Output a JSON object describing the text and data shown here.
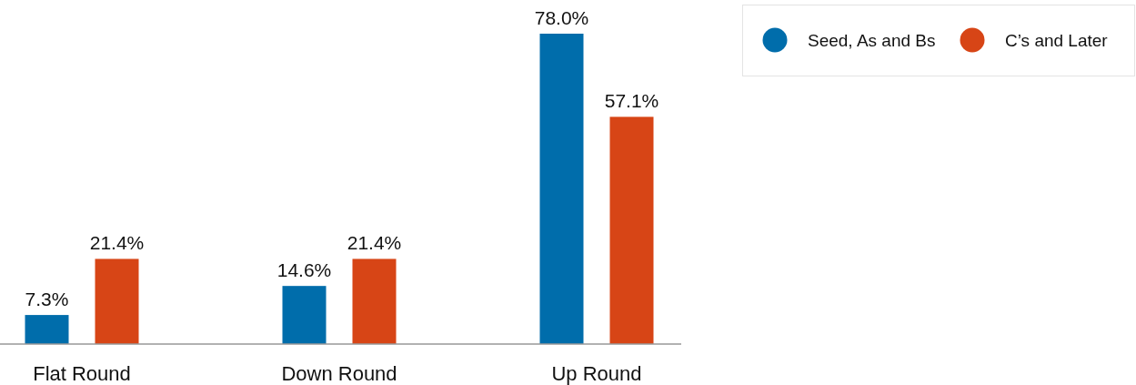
{
  "chart_data": {
    "type": "bar",
    "categories": [
      "Flat Round",
      "Down Round",
      "Up Round"
    ],
    "series": [
      {
        "name": "Seed, As and Bs",
        "color": "#006dab",
        "values": [
          7.3,
          14.6,
          78.0
        ],
        "value_labels": [
          "7.3%",
          "14.6%",
          "78.0%"
        ]
      },
      {
        "name": "C’s and Later",
        "color": "#d74516",
        "values": [
          21.4,
          21.4,
          57.1
        ],
        "value_labels": [
          "21.4%",
          "21.4%",
          "57.1%"
        ]
      }
    ],
    "legend": "top right"
  }
}
